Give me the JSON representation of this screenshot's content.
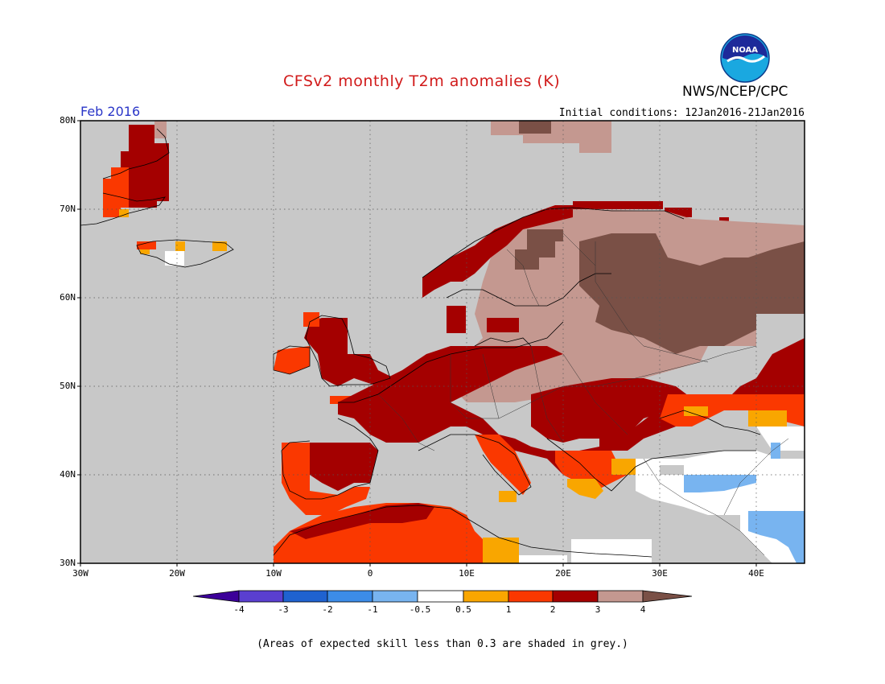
{
  "title": "CFSv2 monthly T2m anomalies (K)",
  "agency": "NWS/NCEP/CPC",
  "logo_text": "NOAA",
  "forecast_month": "Feb 2016",
  "initial_conditions": "Initial conditions: 12Jan2016-21Jan2016",
  "footnote": "(Areas of expected skill less than 0.3 are shaded in grey.)",
  "map": {
    "lon_range": [
      -30,
      45
    ],
    "lat_range": [
      30,
      80
    ],
    "lat_labels": [
      "80N",
      "70N",
      "60N",
      "50N",
      "40N",
      "30N"
    ],
    "lon_labels": [
      "30W",
      "20W",
      "10W",
      "0",
      "10E",
      "20E",
      "30E",
      "40E"
    ],
    "low_skill_color": "#c8c8c8"
  },
  "colorbar": {
    "ticks": [
      "-4",
      "-3",
      "-2",
      "-1",
      "-0.5",
      "0.5",
      "1",
      "2",
      "3",
      "4"
    ],
    "colors": {
      "below_-4": "#3c0099",
      "-4_-3": "#5a3fd0",
      "-3_-2": "#1f62d0",
      "-2_-1": "#3c8ce8",
      "-1_-0.5": "#78b4f0",
      "-0.5_0.5": "#ffffff",
      "0.5_1": "#f9a600",
      "1_2": "#fa3800",
      "2_3": "#a40000",
      "3_4": "#c49890",
      "above_4": "#7a5046"
    }
  }
}
